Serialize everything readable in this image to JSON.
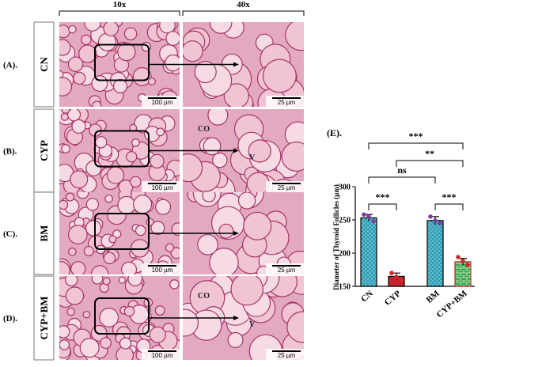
{
  "figure": {
    "columns": [
      "10x",
      "40x"
    ],
    "rows": [
      {
        "letter": "(A).",
        "group": "CN",
        "scales": [
          "100 µm",
          "25 µm"
        ],
        "annotations": []
      },
      {
        "letter": "(B).",
        "group": "CYP",
        "scales": [
          "100 µm",
          "25 µm"
        ],
        "annotations": [
          "CO",
          "V"
        ]
      },
      {
        "letter": "(C).",
        "group": "BM",
        "scales": [
          "100 µm",
          "25 µm"
        ],
        "annotations": []
      },
      {
        "letter": "(D).",
        "group": "CYP+BM",
        "scales": [
          "100 µm",
          "25 µm"
        ],
        "annotations": [
          "CO",
          "V"
        ]
      }
    ]
  },
  "chart_data": {
    "type": "bar",
    "panel_label": "(E).",
    "y_label": "Diameter of Thyroid Follicles (µm)",
    "categories": [
      "CN",
      "CYP",
      "BM",
      "CYP+BM"
    ],
    "values": [
      253,
      165,
      249,
      187
    ],
    "errors": [
      5,
      5,
      6,
      5
    ],
    "points": [
      [
        258,
        255,
        248
      ],
      [
        170,
        164,
        160
      ],
      [
        255,
        249,
        245
      ],
      [
        194,
        188,
        182
      ]
    ],
    "colors": [
      "#58c3d6",
      "#c4232a",
      "#58c3d6",
      "#3aa84a"
    ],
    "point_colors": [
      "#7b3fa0",
      "#d0282e",
      "#7b3fa0",
      "#d0282e"
    ],
    "ylim": [
      150,
      300
    ],
    "yticks": [
      150,
      200,
      250,
      300
    ],
    "comparisons": [
      "***",
      "***",
      "ns",
      "**",
      "***"
    ]
  }
}
